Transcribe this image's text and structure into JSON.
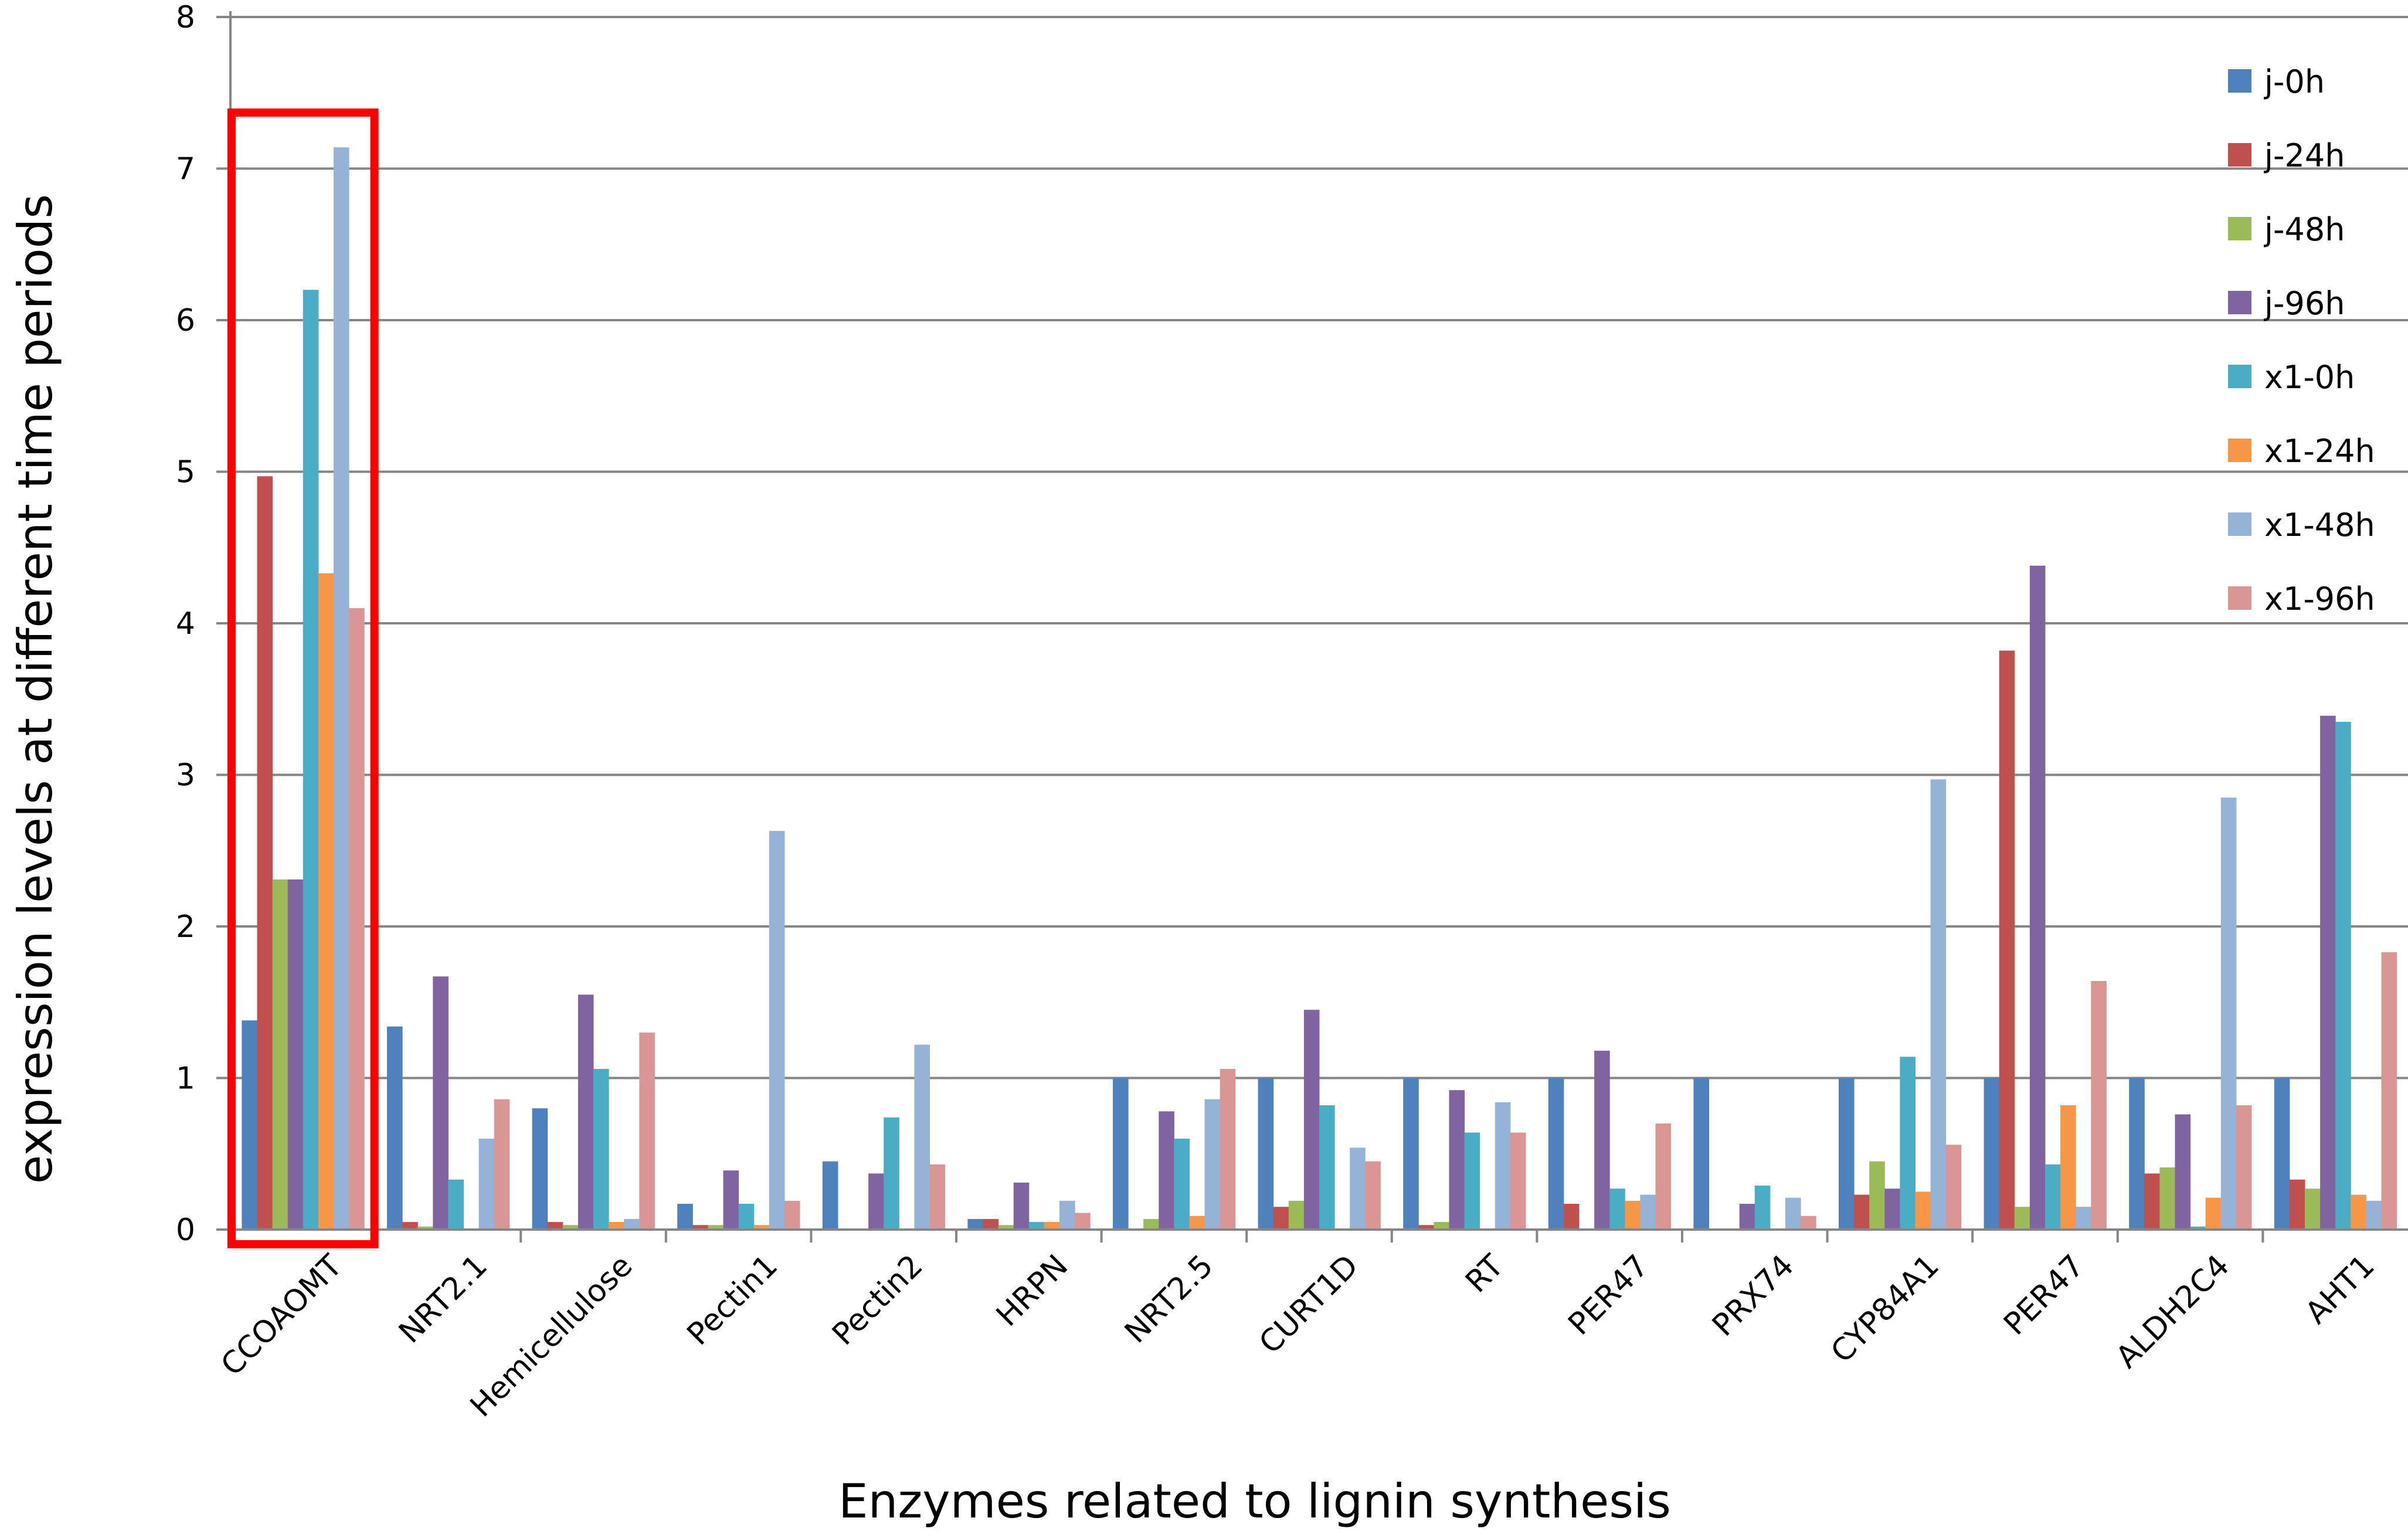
{
  "chart_data": {
    "type": "bar",
    "title": "",
    "xlabel": "Enzymes related to lignin synthesis",
    "ylabel": "expression levels at different time periods",
    "ylim": [
      0,
      8
    ],
    "yticks": [
      "0",
      "1",
      "2",
      "3",
      "4",
      "5",
      "6",
      "7",
      "8"
    ],
    "grid": true,
    "legend_position": "right",
    "categories": [
      "CCOAOMT",
      "NRT2.1",
      "Hemicellulose",
      "Pectin1",
      "Pectin2",
      "HRPN",
      "NRT2.5",
      "CURT1D",
      "RT",
      "PER47",
      "PRX74",
      "CYP84A1",
      "PER47",
      "ALDH2C4",
      "AHT1"
    ],
    "series": [
      {
        "name": "j-0h",
        "color": "#4f81bd",
        "values": [
          1.38,
          1.34,
          0.8,
          0.17,
          0.45,
          0.07,
          1.0,
          1.0,
          1.0,
          1.0,
          1.0,
          1.0,
          1.0,
          1.0,
          1.0
        ]
      },
      {
        "name": "j-24h",
        "color": "#c0504d",
        "values": [
          4.97,
          0.05,
          0.05,
          0.03,
          0.0,
          0.07,
          0.0,
          0.15,
          0.03,
          0.17,
          0.0,
          0.23,
          3.82,
          0.37,
          0.33
        ]
      },
      {
        "name": "j-48h",
        "color": "#9bbb59",
        "values": [
          2.31,
          0.02,
          0.03,
          0.03,
          0.0,
          0.03,
          0.07,
          0.19,
          0.05,
          0.0,
          0.0,
          0.45,
          0.15,
          0.41,
          0.27
        ]
      },
      {
        "name": "j-96h",
        "color": "#8064a2",
        "values": [
          2.31,
          1.67,
          1.55,
          0.39,
          0.37,
          0.31,
          0.78,
          1.45,
          0.92,
          1.18,
          0.17,
          0.27,
          4.38,
          0.76,
          3.39
        ]
      },
      {
        "name": "x1-0h",
        "color": "#4bacc6",
        "values": [
          6.2,
          0.33,
          1.06,
          0.17,
          0.74,
          0.05,
          0.6,
          0.82,
          0.64,
          0.27,
          0.29,
          1.14,
          0.43,
          0.02,
          3.35
        ]
      },
      {
        "name": "x1-24h",
        "color": "#f79646",
        "values": [
          4.33,
          0.0,
          0.05,
          0.03,
          0.0,
          0.05,
          0.09,
          0.0,
          0.0,
          0.19,
          0.0,
          0.25,
          0.82,
          0.21,
          0.23
        ]
      },
      {
        "name": "x1-48h",
        "color": "#95b3d7",
        "values": [
          7.14,
          0.6,
          0.07,
          2.63,
          1.22,
          0.19,
          0.86,
          0.54,
          0.84,
          0.23,
          0.21,
          2.97,
          0.15,
          2.85,
          0.19
        ]
      },
      {
        "name": "x1-96h",
        "color": "#d99694",
        "values": [
          4.1,
          0.86,
          1.3,
          0.19,
          0.43,
          0.11,
          1.06,
          0.45,
          0.64,
          0.7,
          0.09,
          0.56,
          1.64,
          0.82,
          1.83
        ]
      }
    ],
    "annotation": {
      "type": "highlight-box",
      "category_index": 0,
      "color": "#ff0000"
    }
  }
}
